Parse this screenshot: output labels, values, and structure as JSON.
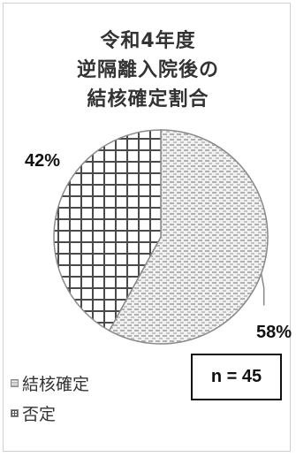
{
  "chart_data": {
    "type": "pie",
    "title_lines": [
      "令和4年度",
      "逆隔離入院後の",
      "結核確定割合"
    ],
    "categories": [
      "結核確定",
      "否定"
    ],
    "values": [
      58,
      42
    ],
    "data_labels": [
      "58%",
      "42%"
    ],
    "legend": "bottom-left",
    "colors": [
      "#b8b8b8",
      "#555555"
    ]
  },
  "annotation": {
    "n_label": "n = 45"
  }
}
